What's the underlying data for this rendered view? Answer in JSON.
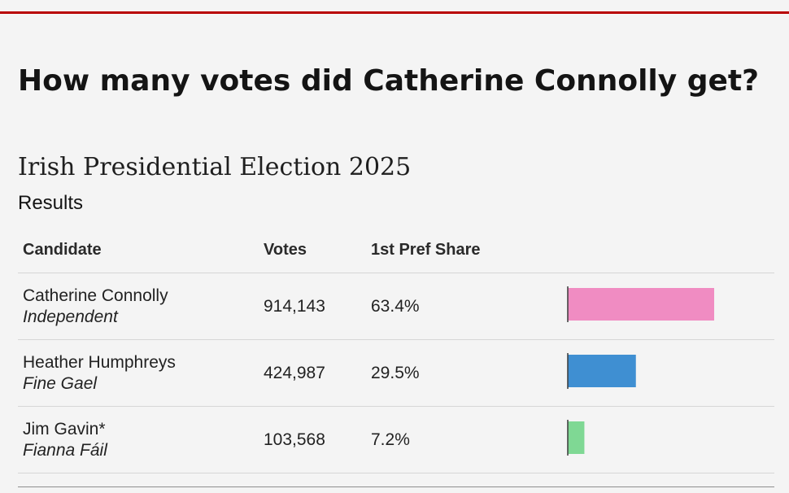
{
  "headline": "How many votes did Catherine Connolly get?",
  "chart_data": {
    "type": "table",
    "title": "Irish Presidential Election 2025",
    "subtitle": "Results",
    "columns": [
      "Candidate",
      "Votes",
      "1st Pref Share"
    ],
    "rows": [
      {
        "candidate": "Catherine Connolly",
        "party": "Independent",
        "votes": "914,143",
        "share_label": "63.4%",
        "share": 63.4,
        "color": "#f08cc2"
      },
      {
        "candidate": "Heather Humphreys",
        "party": "Fine Gael",
        "votes": "424,987",
        "share_label": "29.5%",
        "share": 29.5,
        "color": "#3f8fd2"
      },
      {
        "candidate": "Jim Gavin*",
        "party": "Fianna Fáil",
        "votes": "103,568",
        "share_label": "7.2%",
        "share": 7.2,
        "color": "#7fd894"
      }
    ]
  },
  "colors": {
    "accent_rule": "#b80000",
    "background": "#f4f4f4",
    "bar_axis": "#3a3a3a"
  }
}
